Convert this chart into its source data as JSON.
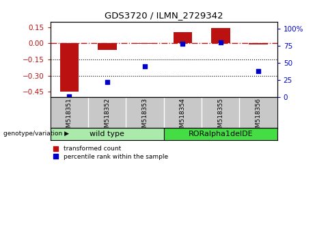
{
  "title": "GDS3720 / ILMN_2729342",
  "samples": [
    "GSM518351",
    "GSM518352",
    "GSM518353",
    "GSM518354",
    "GSM518355",
    "GSM518356"
  ],
  "red_values": [
    -0.45,
    -0.06,
    -0.005,
    0.105,
    0.14,
    -0.008
  ],
  "blue_values_pct": [
    1,
    22,
    45,
    78,
    80,
    38
  ],
  "ylim_left": [
    -0.5,
    0.2
  ],
  "ylim_right": [
    0,
    110
  ],
  "yticks_left": [
    0.15,
    0.0,
    -0.15,
    -0.3,
    -0.45
  ],
  "yticks_right": [
    100,
    75,
    50,
    25,
    0
  ],
  "hlines_dotted": [
    -0.15,
    -0.3
  ],
  "dashed_hline_y": 0.0,
  "groups": [
    {
      "label": "wild type",
      "cols": [
        0,
        1,
        2
      ],
      "color": "#aaeaaa"
    },
    {
      "label": "RORalpha1delDE",
      "cols": [
        3,
        4,
        5
      ],
      "color": "#44dd44"
    }
  ],
  "group_label_text": "genotype/variation",
  "legend_red": "transformed count",
  "legend_blue": "percentile rank within the sample",
  "bar_color": "#bb1111",
  "dot_color": "#0000cc",
  "sample_bg_color": "#c8c8c8",
  "bar_width": 0.5
}
